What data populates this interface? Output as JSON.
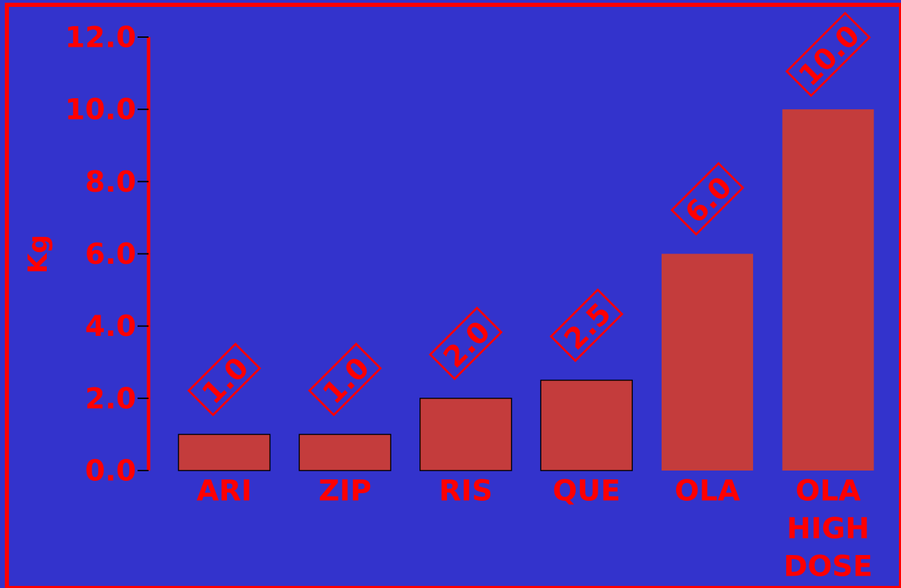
{
  "colors": {
    "background": "#3333cc",
    "accent": "#ff0000",
    "bar_fill": "#c43c3c",
    "bar_edge": "#000000"
  },
  "chart_data": {
    "type": "bar",
    "title": "",
    "xlabel": "",
    "ylabel": "Kg",
    "ylim": [
      0,
      12
    ],
    "yticks": [
      "0.0",
      "2.0",
      "4.0",
      "6.0",
      "8.0",
      "10.0",
      "12.0"
    ],
    "grid": false,
    "categories": [
      [
        "ARI"
      ],
      [
        "ZIP"
      ],
      [
        "RIS"
      ],
      [
        "QUE"
      ],
      [
        "OLA"
      ],
      [
        "OLA",
        "HIGH",
        "DOSE"
      ]
    ],
    "values": [
      1.0,
      1.0,
      2.0,
      2.5,
      6.0,
      10.0
    ],
    "value_labels": [
      "1.0",
      "1.0",
      "2.0",
      "2.5",
      "6.0",
      "10.0"
    ],
    "bar_outlined": [
      true,
      true,
      true,
      true,
      false,
      false
    ]
  }
}
